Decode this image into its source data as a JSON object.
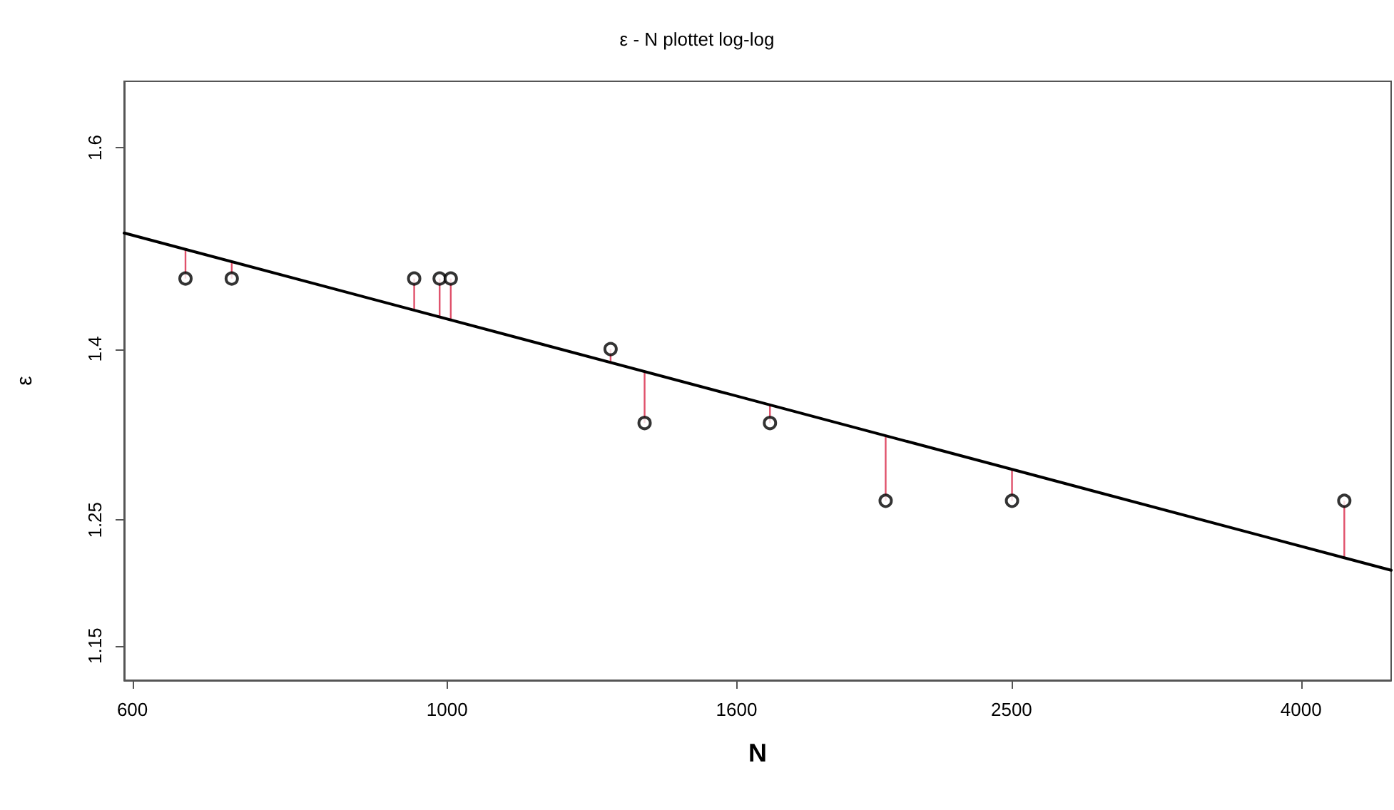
{
  "chart_data": {
    "type": "scatter",
    "title": "ε - N plottet log-log",
    "xlabel": "N",
    "ylabel": "ε",
    "log": "xy",
    "grid": false,
    "marker": "circle",
    "xlim": [
      592,
      4630
    ],
    "xticks": [
      600,
      1000,
      1600,
      2500,
      4000
    ],
    "ylim": [
      1.124,
      1.672
    ],
    "yticks": [
      1.15,
      1.25,
      1.4,
      1.6
    ],
    "series": [
      {
        "color": "#000000",
        "x": [
          654,
          705,
          948,
          988,
          1006,
          1304,
          1378,
          1689,
          2038,
          2502,
          4291
        ],
        "values": [
          1.467,
          1.467,
          1.467,
          1.467,
          1.467,
          1.4,
          1.333,
          1.333,
          1.266,
          1.266,
          1.266
        ],
        "errors": [
          [
            1.467,
            1.496
          ],
          [
            1.467,
            1.484
          ],
          [
            1.437,
            1.467
          ],
          [
            1.43,
            1.467
          ],
          [
            1.428,
            1.467
          ],
          [
            1.388,
            1.4
          ],
          [
            1.333,
            1.379
          ],
          [
            1.333,
            1.349
          ],
          [
            1.266,
            1.322
          ],
          [
            1.266,
            1.293
          ],
          [
            1.219,
            1.266
          ]
        ]
      },
      {
        "type": "line",
        "marker": "none",
        "color": "#000000",
        "line_style": "solid",
        "x": [
          592,
          4630
        ],
        "values": [
          1.512,
          1.209
        ]
      }
    ]
  }
}
